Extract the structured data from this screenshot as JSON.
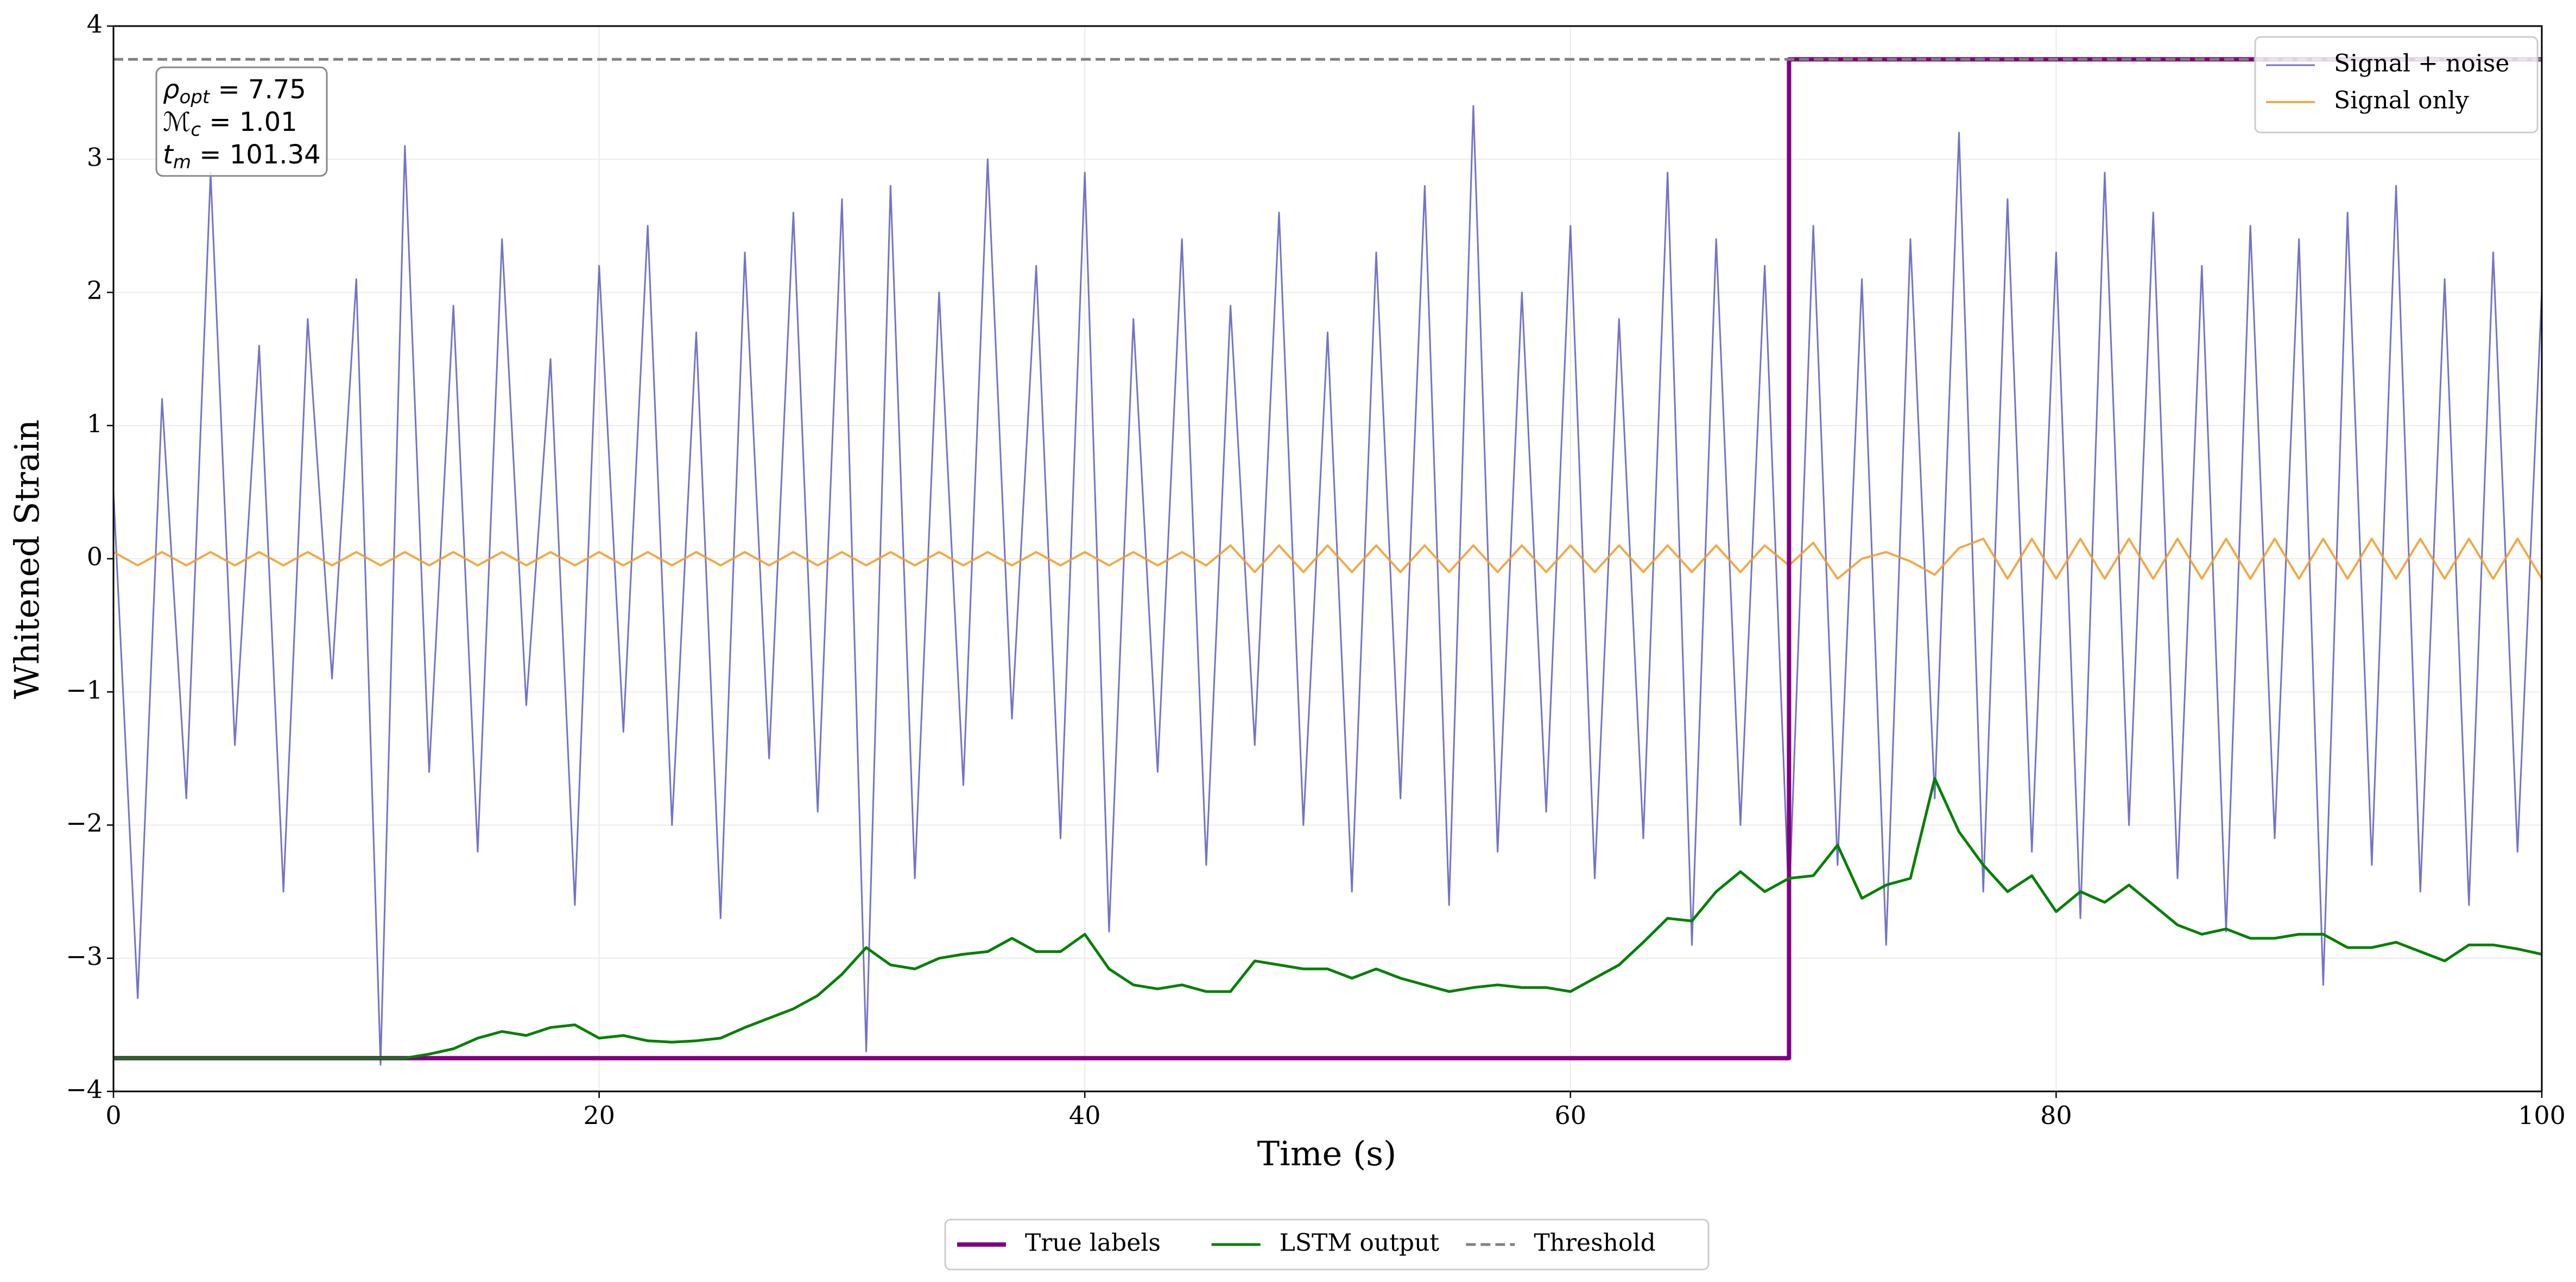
{
  "chart_data": {
    "type": "line",
    "xlabel": "Time (s)",
    "ylabel": "Whitened Strain",
    "xlim": [
      0,
      100
    ],
    "ylim": [
      -4,
      4
    ],
    "xticks": [
      0,
      20,
      40,
      60,
      80,
      100
    ],
    "yticks": [
      {
        "value": -4,
        "label": "−4"
      },
      {
        "value": -3,
        "label": "−3"
      },
      {
        "value": -2,
        "label": "−2"
      },
      {
        "value": -1,
        "label": "−1"
      },
      0,
      1,
      2,
      3,
      4
    ],
    "grid": true,
    "annotations": [
      {
        "base": "ρ",
        "sub": "opt",
        "text": " = 7.75"
      },
      {
        "base": "ℳ",
        "sub": "c",
        "text": " = 1.01"
      },
      {
        "base": "t",
        "sub": "m",
        "text": " = 101.34"
      }
    ],
    "x": [
      0,
      1,
      2,
      3,
      4,
      5,
      6,
      7,
      8,
      9,
      10,
      11,
      12,
      13,
      14,
      15,
      16,
      17,
      18,
      19,
      20,
      21,
      22,
      23,
      24,
      25,
      26,
      27,
      28,
      29,
      30,
      31,
      32,
      33,
      34,
      35,
      36,
      37,
      38,
      39,
      40,
      41,
      42,
      43,
      44,
      45,
      46,
      47,
      48,
      49,
      50,
      51,
      52,
      53,
      54,
      55,
      56,
      57,
      58,
      59,
      60,
      61,
      62,
      63,
      64,
      65,
      66,
      67,
      68,
      69,
      70,
      71,
      72,
      73,
      74,
      75,
      76,
      77,
      78,
      79,
      80,
      81,
      82,
      83,
      84,
      85,
      86,
      87,
      88,
      89,
      90,
      91,
      92,
      93,
      94,
      95,
      96,
      97,
      98,
      99,
      100
    ],
    "series": [
      {
        "name": "Signal + noise",
        "color": "#5b5bbf",
        "width": 3,
        "opacity": 0.85,
        "legend": "upper right",
        "values": [
          0.5,
          -3.3,
          1.2,
          -1.8,
          2.9,
          -1.4,
          1.6,
          -2.5,
          1.8,
          -0.9,
          2.1,
          -3.8,
          3.1,
          -1.6,
          1.9,
          -2.2,
          2.4,
          -1.1,
          1.5,
          -2.6,
          2.2,
          -1.3,
          2.5,
          -2.0,
          1.7,
          -2.7,
          2.3,
          -1.5,
          2.6,
          -1.9,
          2.7,
          -3.7,
          2.8,
          -2.4,
          2.0,
          -1.7,
          3.0,
          -1.2,
          2.2,
          -2.1,
          2.9,
          -2.8,
          1.8,
          -1.6,
          2.4,
          -2.3,
          1.9,
          -1.4,
          2.6,
          -2.0,
          1.7,
          -2.5,
          2.3,
          -1.8,
          2.8,
          -2.6,
          3.4,
          -2.2,
          2.0,
          -1.9,
          2.5,
          -2.4,
          1.8,
          -2.1,
          2.9,
          -2.9,
          2.4,
          -2.0,
          2.2,
          -2.6,
          2.5,
          -2.3,
          2.1,
          -2.9,
          2.4,
          -1.8,
          3.2,
          -2.5,
          2.7,
          -2.2,
          2.3,
          -2.7,
          2.9,
          -2.0,
          2.6,
          -2.4,
          2.2,
          -2.8,
          2.5,
          -2.1,
          2.4,
          -3.2,
          2.6,
          -2.3,
          2.8,
          -2.5,
          2.1,
          -2.6,
          2.3,
          -2.2,
          2.0
        ]
      },
      {
        "name": "Signal only",
        "color": "#f0a030",
        "width": 4,
        "opacity": 0.9,
        "legend": "upper right",
        "values": [
          0.05,
          -0.05,
          0.05,
          -0.05,
          0.05,
          -0.05,
          0.05,
          -0.05,
          0.05,
          -0.05,
          0.05,
          -0.05,
          0.05,
          -0.05,
          0.05,
          -0.05,
          0.05,
          -0.05,
          0.05,
          -0.05,
          0.05,
          -0.05,
          0.05,
          -0.05,
          0.05,
          -0.05,
          0.05,
          -0.05,
          0.05,
          -0.05,
          0.05,
          -0.05,
          0.05,
          -0.05,
          0.05,
          -0.05,
          0.05,
          -0.05,
          0.05,
          -0.05,
          0.05,
          -0.05,
          0.05,
          -0.05,
          0.05,
          -0.05,
          0.1,
          -0.1,
          0.1,
          -0.1,
          0.1,
          -0.1,
          0.1,
          -0.1,
          0.1,
          -0.1,
          0.1,
          -0.1,
          0.1,
          -0.1,
          0.1,
          -0.1,
          0.1,
          -0.1,
          0.1,
          -0.1,
          0.1,
          -0.1,
          0.1,
          -0.05,
          0.12,
          -0.15,
          0.0,
          0.05,
          -0.02,
          -0.12,
          0.08,
          0.15,
          -0.15,
          0.15,
          -0.15,
          0.15,
          -0.15,
          0.15,
          -0.15,
          0.15,
          -0.15,
          0.15,
          -0.15,
          0.15,
          -0.15,
          0.15,
          -0.15,
          0.15,
          -0.15,
          0.15,
          -0.15,
          0.15,
          -0.15,
          0.15,
          -0.15
        ]
      },
      {
        "name": "True labels",
        "color": "#800080",
        "width": 8,
        "opacity": 1,
        "legend": "lower center",
        "x": [
          0,
          69,
          69,
          100
        ],
        "values": [
          -3.75,
          -3.75,
          3.75,
          3.75
        ]
      },
      {
        "name": "LSTM output",
        "color": "#008000",
        "width": 5,
        "opacity": 1,
        "legend": "lower center",
        "values": [
          -3.75,
          -3.75,
          -3.75,
          -3.75,
          -3.75,
          -3.75,
          -3.75,
          -3.75,
          -3.75,
          -3.75,
          -3.75,
          -3.75,
          -3.75,
          -3.72,
          -3.68,
          -3.6,
          -3.55,
          -3.58,
          -3.52,
          -3.5,
          -3.6,
          -3.58,
          -3.62,
          -3.63,
          -3.62,
          -3.6,
          -3.52,
          -3.45,
          -3.38,
          -3.28,
          -3.12,
          -2.92,
          -3.05,
          -3.08,
          -3.0,
          -2.97,
          -2.95,
          -2.85,
          -2.95,
          -2.95,
          -2.82,
          -3.08,
          -3.2,
          -3.23,
          -3.2,
          -3.25,
          -3.25,
          -3.02,
          -3.05,
          -3.08,
          -3.08,
          -3.15,
          -3.08,
          -3.15,
          -3.2,
          -3.25,
          -3.22,
          -3.2,
          -3.22,
          -3.22,
          -3.25,
          -3.15,
          -3.05,
          -2.88,
          -2.7,
          -2.72,
          -2.5,
          -2.35,
          -2.5,
          -2.4,
          -2.38,
          -2.15,
          -2.55,
          -2.45,
          -2.4,
          -1.65,
          -2.05,
          -2.3,
          -2.5,
          -2.38,
          -2.65,
          -2.5,
          -2.58,
          -2.45,
          -2.6,
          -2.75,
          -2.82,
          -2.78,
          -2.85,
          -2.85,
          -2.82,
          -2.82,
          -2.92,
          -2.92,
          -2.88,
          -2.95,
          -3.02,
          -2.9,
          -2.9,
          -2.93,
          -2.97
        ]
      },
      {
        "name": "Threshold",
        "color": "#808080",
        "width": 5,
        "opacity": 1,
        "dash": true,
        "legend": "lower center",
        "x": [
          0,
          100
        ],
        "values": [
          3.75,
          3.75
        ]
      }
    ]
  }
}
